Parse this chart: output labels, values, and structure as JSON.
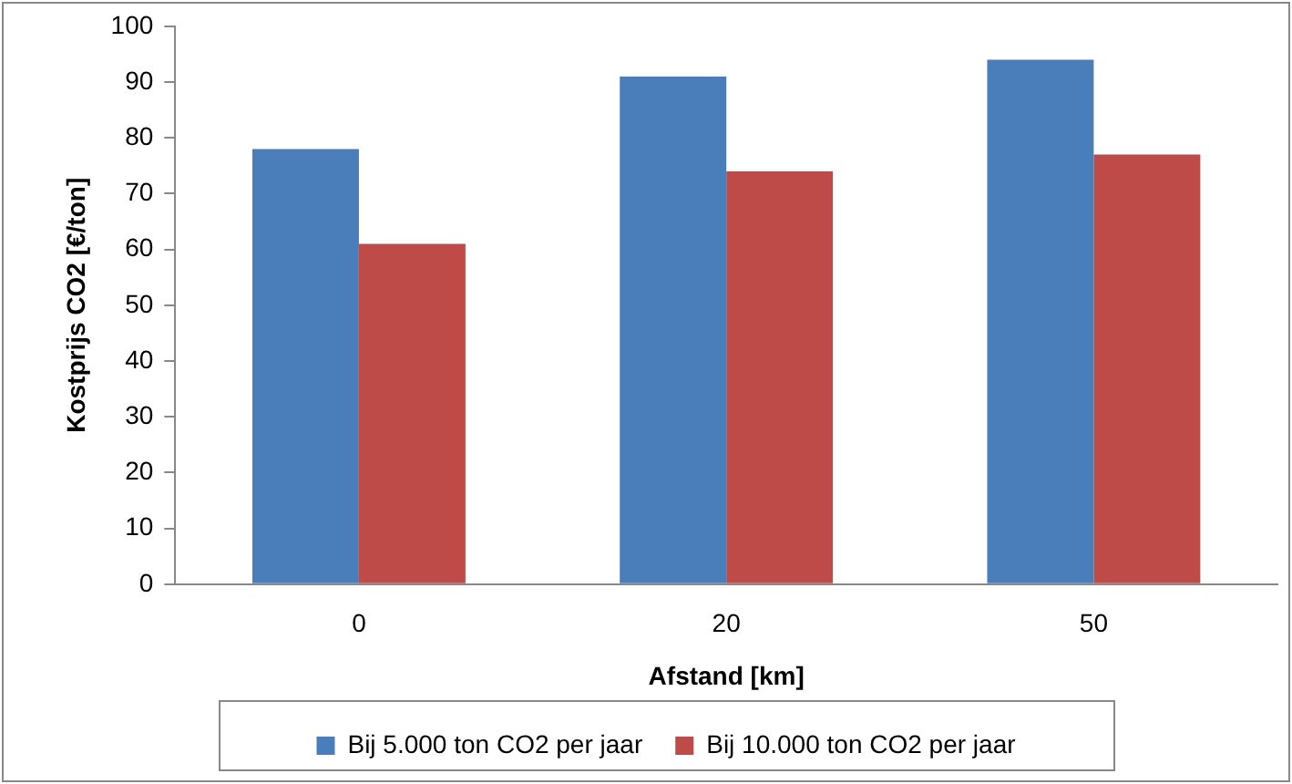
{
  "chart_data": {
    "type": "bar",
    "xlabel": "Afstand [km]",
    "ylabel": "Kostprijs CO2 [€/ton]",
    "categories": [
      "0",
      "20",
      "50"
    ],
    "series": [
      {
        "name": "Bij 5.000 ton CO2 per jaar",
        "color": "#4a7ebb",
        "values": [
          78,
          91,
          94
        ]
      },
      {
        "name": "Bij 10.000 ton CO2 per jaar",
        "color": "#be4b48",
        "values": [
          61,
          74,
          77
        ]
      }
    ],
    "ylim": [
      0,
      100
    ],
    "yticks": [
      0,
      10,
      20,
      30,
      40,
      50,
      60,
      70,
      80,
      90,
      100
    ],
    "grid": false,
    "legend": "bottom"
  }
}
